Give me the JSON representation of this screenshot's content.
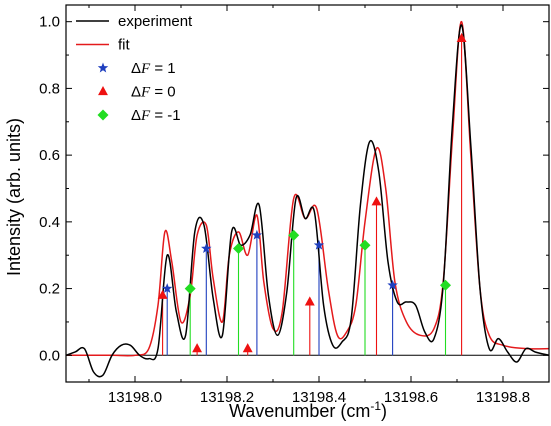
{
  "chart_data": {
    "type": "line",
    "xlabel": "Wavenumber (cm",
    "xlabel_sup": "-1",
    "xlabel_end": ")",
    "ylabel": "Intensity (arb. units)",
    "xlim": [
      13197.85,
      13198.9
    ],
    "ylim": [
      -0.08,
      1.05
    ],
    "x_ticks": [
      13198.0,
      13198.2,
      13198.4,
      13198.6,
      13198.8
    ],
    "x_tick_labels": [
      "13198.0",
      "13198.2",
      "13198.4",
      "13198.6",
      "13198.8"
    ],
    "y_ticks": [
      0.0,
      0.2,
      0.4,
      0.6,
      0.8,
      1.0
    ],
    "y_tick_labels": [
      "0.0",
      "0.2",
      "0.4",
      "0.6",
      "0.8",
      "1.0"
    ],
    "zero_line": true,
    "grid": false,
    "legend_position": "top-left",
    "colors": {
      "experiment": "#000000",
      "fit": "#e41a1c",
      "dF1": "#1f3fbf",
      "dF0": "#ee1111",
      "dFm1": "#22dd22"
    },
    "legend": [
      {
        "label": "experiment",
        "marker": "line",
        "color": "#000000"
      },
      {
        "label": "fit",
        "marker": "line",
        "color": "#e41a1c"
      },
      {
        "prefix": "Δ",
        "var": "F",
        "suffix": " = 1",
        "marker": "star",
        "color": "#1f3fbf"
      },
      {
        "prefix": "Δ",
        "var": "F",
        "suffix": " = 0",
        "marker": "triangle",
        "color": "#ee1111"
      },
      {
        "prefix": "Δ",
        "var": "F",
        "suffix": " = -1",
        "marker": "diamond",
        "color": "#22dd22"
      }
    ],
    "series": [
      {
        "name": "experiment",
        "x": [
          13197.85,
          13197.87,
          13197.89,
          13197.91,
          13197.93,
          13197.95,
          13197.97,
          13197.99,
          13198.01,
          13198.03,
          13198.05,
          13198.07,
          13198.09,
          13198.11,
          13198.13,
          13198.15,
          13198.17,
          13198.19,
          13198.21,
          13198.23,
          13198.25,
          13198.27,
          13198.29,
          13198.31,
          13198.33,
          13198.35,
          13198.37,
          13198.39,
          13198.41,
          13198.43,
          13198.45,
          13198.47,
          13198.49,
          13198.51,
          13198.53,
          13198.55,
          13198.57,
          13198.59,
          13198.61,
          13198.63,
          13198.65,
          13198.67,
          13198.69,
          13198.71,
          13198.73,
          13198.75,
          13198.77,
          13198.79,
          13198.81,
          13198.83,
          13198.85,
          13198.87,
          13198.9
        ],
        "y": [
          0.0,
          0.01,
          0.02,
          -0.05,
          -0.06,
          0.0,
          0.03,
          0.03,
          0.0,
          -0.01,
          0.02,
          0.3,
          0.13,
          0.06,
          0.37,
          0.39,
          0.17,
          0.06,
          0.37,
          0.33,
          0.36,
          0.45,
          0.18,
          0.06,
          0.19,
          0.47,
          0.41,
          0.43,
          0.15,
          0.03,
          0.04,
          0.11,
          0.45,
          0.64,
          0.55,
          0.28,
          0.16,
          0.16,
          0.15,
          0.07,
          0.05,
          0.21,
          0.69,
          0.99,
          0.63,
          0.2,
          0.02,
          0.05,
          0.01,
          -0.02,
          0.02,
          0.01,
          0.0
        ]
      },
      {
        "name": "fit",
        "x": [
          13197.85,
          13197.9,
          13197.95,
          13198.0,
          13198.03,
          13198.05,
          13198.065,
          13198.08,
          13198.1,
          13198.12,
          13198.135,
          13198.155,
          13198.17,
          13198.19,
          13198.205,
          13198.225,
          13198.245,
          13198.265,
          13198.28,
          13198.3,
          13198.32,
          13198.345,
          13198.37,
          13198.395,
          13198.42,
          13198.44,
          13198.46,
          13198.48,
          13198.5,
          13198.525,
          13198.545,
          13198.565,
          13198.59,
          13198.62,
          13198.65,
          13198.67,
          13198.69,
          13198.71,
          13198.73,
          13198.75,
          13198.77,
          13198.8,
          13198.85,
          13198.9
        ],
        "y": [
          0.0,
          0.0,
          0.0,
          0.0,
          0.02,
          0.15,
          0.37,
          0.28,
          0.1,
          0.18,
          0.36,
          0.39,
          0.23,
          0.1,
          0.3,
          0.37,
          0.3,
          0.42,
          0.22,
          0.08,
          0.13,
          0.47,
          0.41,
          0.44,
          0.2,
          0.06,
          0.07,
          0.15,
          0.4,
          0.62,
          0.5,
          0.22,
          0.1,
          0.06,
          0.08,
          0.22,
          0.65,
          1.0,
          0.6,
          0.2,
          0.06,
          0.03,
          0.02,
          0.02
        ]
      }
    ],
    "markers": [
      {
        "group": "dF1",
        "marker": "star",
        "color": "#1f3fbf",
        "points": [
          [
            13198.07,
            0.2
          ],
          [
            13198.155,
            0.32
          ],
          [
            13198.265,
            0.36
          ],
          [
            13198.4,
            0.33
          ],
          [
            13198.56,
            0.21
          ]
        ]
      },
      {
        "group": "dF0",
        "marker": "triangle",
        "color": "#ee1111",
        "points": [
          [
            13198.06,
            0.18
          ],
          [
            13198.135,
            0.02
          ],
          [
            13198.245,
            0.02
          ],
          [
            13198.38,
            0.16
          ],
          [
            13198.525,
            0.46
          ],
          [
            13198.71,
            0.95
          ]
        ]
      },
      {
        "group": "dFm1",
        "marker": "diamond",
        "color": "#22dd22",
        "points": [
          [
            13198.12,
            0.2
          ],
          [
            13198.225,
            0.32
          ],
          [
            13198.345,
            0.36
          ],
          [
            13198.5,
            0.33
          ],
          [
            13198.675,
            0.21
          ]
        ]
      }
    ]
  }
}
